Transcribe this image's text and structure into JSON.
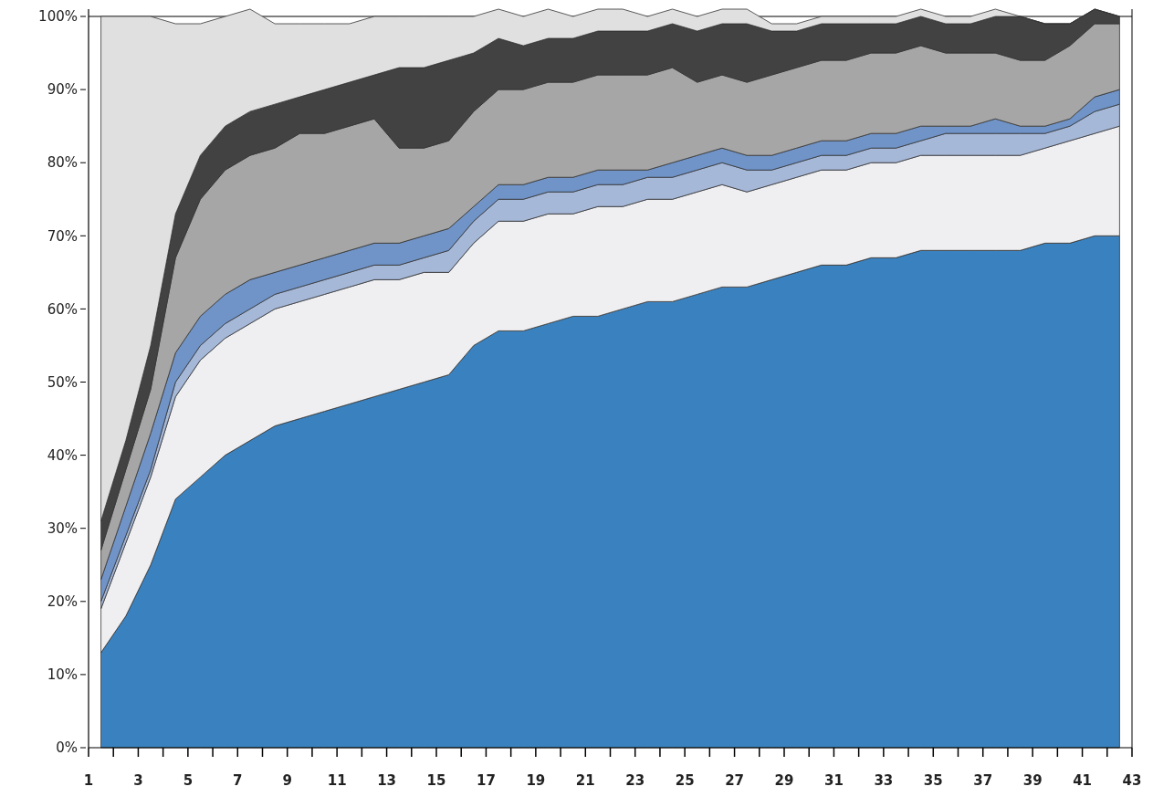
{
  "chart_data": {
    "type": "area",
    "stacked": true,
    "x": [
      1.5,
      2.5,
      3.5,
      4.5,
      5.5,
      6.5,
      7.5,
      8.5,
      9.5,
      10.5,
      11.5,
      12.5,
      13.5,
      14.5,
      15.5,
      16.5,
      17.5,
      18.5,
      19.5,
      20.5,
      21.5,
      22.5,
      23.5,
      24.5,
      25.5,
      26.5,
      27.5,
      28.5,
      29.5,
      30.5,
      31.5,
      32.5,
      33.5,
      34.5,
      35.5,
      36.5,
      37.5,
      38.5,
      39.5,
      40.5,
      41.5,
      42.5
    ],
    "series": [
      {
        "color": "#3a82bf",
        "values": [
          13,
          18,
          25,
          34,
          37,
          40,
          42,
          44,
          45,
          46,
          47,
          48,
          49,
          50,
          51,
          55,
          57,
          57,
          58,
          59,
          59,
          60,
          61,
          61,
          62,
          63,
          63,
          64,
          65,
          66,
          66,
          67,
          67,
          68,
          68,
          68,
          68,
          68,
          69,
          69,
          70,
          70
        ]
      },
      {
        "color": "#efeff2",
        "values": [
          6,
          10,
          12,
          14,
          16,
          16,
          16,
          16,
          16,
          16,
          16,
          16,
          15,
          15,
          14,
          14,
          15,
          15,
          15,
          14,
          15,
          14,
          14,
          14,
          14,
          14,
          13,
          13,
          13,
          13,
          13,
          13,
          13,
          13,
          13,
          13,
          13,
          13,
          13,
          14,
          14,
          15
        ]
      },
      {
        "color": "#a6b8d8",
        "values": [
          1,
          1,
          1,
          2,
          2,
          2,
          2,
          2,
          2,
          2,
          2,
          2,
          2,
          2,
          3,
          3,
          3,
          3,
          3,
          3,
          3,
          3,
          3,
          3,
          3,
          3,
          3,
          2,
          2,
          2,
          2,
          2,
          2,
          2,
          3,
          3,
          3,
          3,
          2,
          2,
          3,
          3
        ]
      },
      {
        "color": "#7094c8",
        "values": [
          3,
          4,
          5,
          4,
          4,
          4,
          4,
          3,
          3,
          3,
          3,
          3,
          3,
          3,
          3,
          2,
          2,
          2,
          2,
          2,
          2,
          2,
          1,
          2,
          2,
          2,
          2,
          2,
          2,
          2,
          2,
          2,
          2,
          2,
          1,
          1,
          2,
          1,
          1,
          1,
          2,
          2
        ]
      },
      {
        "color": "#a6a6a6",
        "values": [
          4,
          5,
          6,
          13,
          16,
          17,
          17,
          17,
          18,
          17,
          17,
          17,
          13,
          12,
          12,
          13,
          13,
          13,
          13,
          13,
          13,
          13,
          13,
          13,
          10,
          10,
          10,
          11,
          11,
          11,
          11,
          11,
          11,
          11,
          10,
          10,
          9,
          9,
          9,
          10,
          10,
          9
        ]
      },
      {
        "color": "#424242",
        "values": [
          4,
          4,
          6,
          6,
          6,
          6,
          6,
          6,
          5,
          6,
          6,
          6,
          11,
          11,
          11,
          8,
          7,
          6,
          6,
          6,
          6,
          6,
          6,
          6,
          7,
          7,
          8,
          6,
          5,
          5,
          5,
          4,
          4,
          4,
          4,
          4,
          5,
          6,
          5,
          3,
          2,
          1
        ]
      },
      {
        "color": "#e0e0e0",
        "values": [
          69,
          58,
          45,
          26,
          18,
          15,
          14,
          11,
          10,
          9,
          8,
          8,
          7,
          7,
          6,
          5,
          4,
          4,
          4,
          3,
          3,
          3,
          2,
          2,
          2,
          2,
          2,
          1,
          1,
          1,
          1,
          1,
          1,
          1,
          1,
          1,
          1,
          0,
          0,
          0,
          0,
          0
        ]
      }
    ],
    "xlim": [
      1,
      43
    ],
    "xticks": [
      1,
      {
        "value": 2,
        "label": null
      },
      3,
      {
        "value": 4,
        "label": null
      },
      5,
      {
        "value": 6,
        "label": null
      },
      7,
      {
        "value": 8,
        "label": null
      },
      9,
      {
        "value": 10,
        "label": null
      },
      11,
      {
        "value": 12,
        "label": null
      },
      13,
      {
        "value": 14,
        "label": null
      },
      15,
      {
        "value": 16,
        "label": null
      },
      17,
      {
        "value": 18,
        "label": null
      },
      19,
      {
        "value": 20,
        "label": null
      },
      21,
      {
        "value": 22,
        "label": null
      },
      23,
      {
        "value": 24,
        "label": null
      },
      25,
      {
        "value": 26,
        "label": null
      },
      27,
      {
        "value": 28,
        "label": null
      },
      29,
      {
        "value": 30,
        "label": null
      },
      31,
      {
        "value": 32,
        "label": null
      },
      33,
      {
        "value": 34,
        "label": null
      },
      35,
      {
        "value": 36,
        "label": null
      },
      37,
      {
        "value": 38,
        "label": null
      },
      39,
      {
        "value": 40,
        "label": null
      },
      41,
      {
        "value": 42,
        "label": null
      },
      43
    ],
    "ylim": [
      0,
      101
    ],
    "yticks": [
      {
        "value": 0,
        "label": "0%"
      },
      {
        "value": 10,
        "label": "10%"
      },
      {
        "value": 20,
        "label": "20%"
      },
      {
        "value": 30,
        "label": "30%"
      },
      {
        "value": 40,
        "label": "40%"
      },
      {
        "value": 50,
        "label": "50%"
      },
      {
        "value": 60,
        "label": "60%"
      },
      {
        "value": 70,
        "label": "70%"
      },
      {
        "value": 80,
        "label": "80%"
      },
      {
        "value": 90,
        "label": "90%"
      },
      {
        "value": 100,
        "label": "100%"
      }
    ]
  }
}
